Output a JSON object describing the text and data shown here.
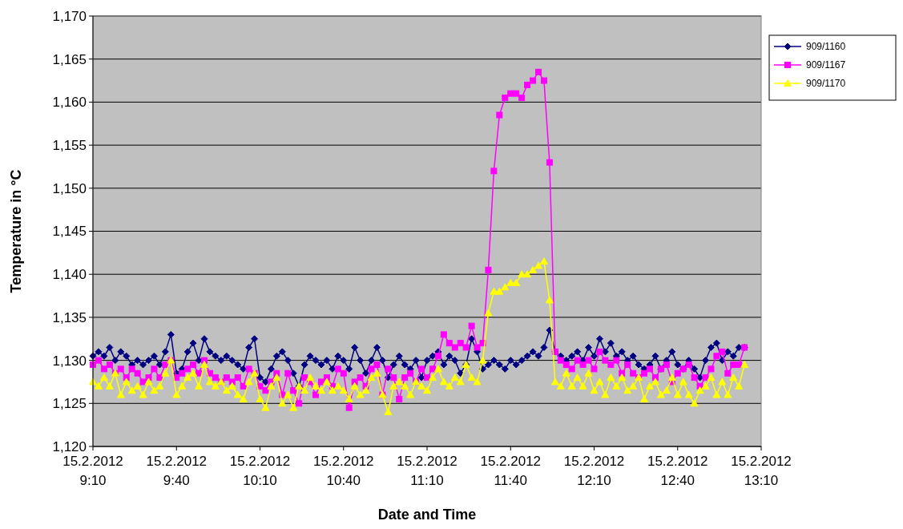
{
  "chart_data": {
    "type": "line",
    "xlabel": "Date and Time",
    "ylabel": "Temperature in °C",
    "x": [
      "2012-02-15T09:10",
      "2012-02-15T09:12",
      "2012-02-15T09:14",
      "2012-02-15T09:16",
      "2012-02-15T09:18",
      "2012-02-15T09:20",
      "2012-02-15T09:22",
      "2012-02-15T09:24",
      "2012-02-15T09:26",
      "2012-02-15T09:28",
      "2012-02-15T09:30",
      "2012-02-15T09:32",
      "2012-02-15T09:34",
      "2012-02-15T09:36",
      "2012-02-15T09:38",
      "2012-02-15T09:40",
      "2012-02-15T09:42",
      "2012-02-15T09:44",
      "2012-02-15T09:46",
      "2012-02-15T09:48",
      "2012-02-15T09:50",
      "2012-02-15T09:52",
      "2012-02-15T09:54",
      "2012-02-15T09:56",
      "2012-02-15T09:58",
      "2012-02-15T10:00",
      "2012-02-15T10:02",
      "2012-02-15T10:04",
      "2012-02-15T10:06",
      "2012-02-15T10:08",
      "2012-02-15T10:10",
      "2012-02-15T10:12",
      "2012-02-15T10:14",
      "2012-02-15T10:16",
      "2012-02-15T10:18",
      "2012-02-15T10:20",
      "2012-02-15T10:22",
      "2012-02-15T10:24",
      "2012-02-15T10:26",
      "2012-02-15T10:28",
      "2012-02-15T10:30",
      "2012-02-15T10:32",
      "2012-02-15T10:34",
      "2012-02-15T10:36",
      "2012-02-15T10:38",
      "2012-02-15T10:40",
      "2012-02-15T10:42",
      "2012-02-15T10:44",
      "2012-02-15T10:46",
      "2012-02-15T10:48",
      "2012-02-15T10:50",
      "2012-02-15T10:52",
      "2012-02-15T10:54",
      "2012-02-15T10:56",
      "2012-02-15T10:58",
      "2012-02-15T11:00",
      "2012-02-15T11:02",
      "2012-02-15T11:04",
      "2012-02-15T11:06",
      "2012-02-15T11:08",
      "2012-02-15T11:10",
      "2012-02-15T11:12",
      "2012-02-15T11:14",
      "2012-02-15T11:16",
      "2012-02-15T11:18",
      "2012-02-15T11:20",
      "2012-02-15T11:22",
      "2012-02-15T11:24",
      "2012-02-15T11:26",
      "2012-02-15T11:28",
      "2012-02-15T11:30",
      "2012-02-15T11:32",
      "2012-02-15T11:34",
      "2012-02-15T11:36",
      "2012-02-15T11:38",
      "2012-02-15T11:40",
      "2012-02-15T11:42",
      "2012-02-15T11:44",
      "2012-02-15T11:46",
      "2012-02-15T11:48",
      "2012-02-15T11:50",
      "2012-02-15T11:52",
      "2012-02-15T11:54",
      "2012-02-15T11:56",
      "2012-02-15T11:58",
      "2012-02-15T12:00",
      "2012-02-15T12:02",
      "2012-02-15T12:04",
      "2012-02-15T12:06",
      "2012-02-15T12:08",
      "2012-02-15T12:10",
      "2012-02-15T12:12",
      "2012-02-15T12:14",
      "2012-02-15T12:16",
      "2012-02-15T12:18",
      "2012-02-15T12:20",
      "2012-02-15T12:22",
      "2012-02-15T12:24",
      "2012-02-15T12:26",
      "2012-02-15T12:28",
      "2012-02-15T12:30",
      "2012-02-15T12:32",
      "2012-02-15T12:34",
      "2012-02-15T12:36",
      "2012-02-15T12:38",
      "2012-02-15T12:40",
      "2012-02-15T12:42",
      "2012-02-15T12:44",
      "2012-02-15T12:46",
      "2012-02-15T12:48",
      "2012-02-15T12:50",
      "2012-02-15T12:52",
      "2012-02-15T12:54",
      "2012-02-15T12:56",
      "2012-02-15T12:58",
      "2012-02-15T13:00",
      "2012-02-15T13:02",
      "2012-02-15T13:04"
    ],
    "series": [
      {
        "name": "909/1160",
        "color": "#000080",
        "marker": "diamond",
        "values": [
          1130.5,
          1131,
          1130.5,
          1131.5,
          1130,
          1131,
          1130.5,
          1129.5,
          1130,
          1129.5,
          1130,
          1130.5,
          1129.5,
          1131,
          1133,
          1128.5,
          1129,
          1131,
          1132,
          1130,
          1132.5,
          1131,
          1130.5,
          1130,
          1130.5,
          1130,
          1129.5,
          1129,
          1131.5,
          1132.5,
          1128,
          1127.5,
          1129,
          1130.5,
          1131,
          1130,
          1128.5,
          1127,
          1129.5,
          1130.5,
          1130,
          1129.5,
          1130,
          1129,
          1130.5,
          1130,
          1129,
          1131.5,
          1130,
          1128.5,
          1130,
          1131.5,
          1130,
          1128,
          1129.5,
          1130.5,
          1129.5,
          1129,
          1130,
          1128,
          1130,
          1130.5,
          1131,
          1129.5,
          1130.5,
          1130,
          1128.5,
          1129.5,
          1132.5,
          1131,
          1129,
          1129.5,
          1130,
          1129.5,
          1129,
          1130,
          1129.5,
          1130,
          1130.5,
          1131,
          1130.5,
          1131.5,
          1133.5,
          1131,
          1130.5,
          1130,
          1130.5,
          1131,
          1130,
          1131.5,
          1130.5,
          1132.5,
          1131,
          1132,
          1130.5,
          1131,
          1130,
          1130.5,
          1129.5,
          1129,
          1129.5,
          1130.5,
          1129,
          1130,
          1131,
          1129.5,
          1129,
          1130,
          1129,
          1128,
          1130,
          1131.5,
          1132,
          1130,
          1131,
          1130.5,
          1131.5,
          1131.5
        ]
      },
      {
        "name": "909/1167",
        "color": "#ff00ff",
        "marker": "square",
        "values": [
          1129.5,
          1130,
          1129,
          1129.5,
          1128.5,
          1129,
          1128,
          1129,
          1128.5,
          1127.5,
          1128,
          1129,
          1128,
          1129.5,
          1130,
          1128,
          1128.5,
          1129,
          1129.5,
          1128.5,
          1130,
          1128.5,
          1128,
          1127.5,
          1128,
          1127.5,
          1128,
          1127,
          1129,
          1128.5,
          1127,
          1126.5,
          1127.5,
          1128.5,
          1126,
          1128.5,
          1126.5,
          1125,
          1128,
          1127.5,
          1126,
          1127.5,
          1128,
          1127,
          1129,
          1128.5,
          1124.5,
          1127.5,
          1128,
          1127,
          1129,
          1129.5,
          1126,
          1129,
          1128,
          1125.5,
          1128,
          1128.5,
          1127.5,
          1129,
          1128,
          1129,
          1130.5,
          1133,
          1132,
          1131.5,
          1132,
          1131.5,
          1134,
          1131.5,
          1132,
          1140.5,
          1152,
          1158.5,
          1160.5,
          1161,
          1161,
          1160.5,
          1162,
          1162.5,
          1163.5,
          1162.5,
          1153,
          1131,
          1130,
          1129.5,
          1129,
          1130,
          1129.5,
          1130,
          1129,
          1131,
          1130,
          1129.5,
          1130,
          1128.5,
          1129.5,
          1128.5,
          1128,
          1128.5,
          1129,
          1128,
          1129,
          1129.5,
          1127.5,
          1128.5,
          1129,
          1129.5,
          1128,
          1127,
          1128,
          1129,
          1130.5,
          1131,
          1128.5,
          1129.5,
          1129.5,
          1131.5
        ]
      },
      {
        "name": "909/1170",
        "color": "#ffff00",
        "marker": "triangle",
        "values": [
          1127.5,
          1127,
          1128,
          1127,
          1128.5,
          1126,
          1127.5,
          1126.5,
          1127,
          1126,
          1127.5,
          1126.5,
          1127,
          1128.5,
          1130,
          1126,
          1127,
          1128,
          1128.5,
          1127,
          1129.5,
          1127.5,
          1127,
          1127.5,
          1126.5,
          1127,
          1126,
          1125.5,
          1127.5,
          1128.5,
          1125.5,
          1124.5,
          1127,
          1128,
          1125,
          1126,
          1124.5,
          1127,
          1126.5,
          1128,
          1127,
          1126.5,
          1127.5,
          1126.5,
          1127,
          1126.5,
          1125.5,
          1127,
          1126,
          1126.5,
          1128,
          1128.5,
          1126,
          1124,
          1127,
          1127.5,
          1127,
          1126,
          1127.5,
          1127,
          1126.5,
          1128,
          1129,
          1127.5,
          1127,
          1128,
          1127.5,
          1129.5,
          1128,
          1127.5,
          1130,
          1135.5,
          1138,
          1138,
          1138.5,
          1139,
          1139,
          1140,
          1140,
          1140.5,
          1141,
          1141.5,
          1137,
          1127.5,
          1127,
          1128.5,
          1127,
          1128,
          1127,
          1128.5,
          1126.5,
          1127.5,
          1126,
          1128,
          1127,
          1128,
          1126.5,
          1127,
          1128,
          1125.5,
          1127,
          1127.5,
          1126,
          1126.5,
          1128,
          1126,
          1127.5,
          1126,
          1125,
          1126.5,
          1127,
          1128,
          1126,
          1127.5,
          1126,
          1128,
          1127,
          1129.5
        ]
      }
    ],
    "xlim": [
      "2012-02-15T09:10",
      "2012-02-15T13:10"
    ],
    "xticks": [
      {
        "value": "2012-02-15T09:10",
        "label": "15.2.2012 9:10"
      },
      {
        "value": "2012-02-15T09:40",
        "label": "15.2.2012 9:40"
      },
      {
        "value": "2012-02-15T10:10",
        "label": "15.2.2012 10:10"
      },
      {
        "value": "2012-02-15T10:40",
        "label": "15.2.2012 10:40"
      },
      {
        "value": "2012-02-15T11:10",
        "label": "15.2.2012 11:10"
      },
      {
        "value": "2012-02-15T11:40",
        "label": "15.2.2012 11:40"
      },
      {
        "value": "2012-02-15T12:10",
        "label": "15.2.2012 12:10"
      },
      {
        "value": "2012-02-15T12:40",
        "label": "15.2.2012 12:40"
      },
      {
        "value": "2012-02-15T13:10",
        "label": "15.2.2012 13:10"
      }
    ],
    "ylim": [
      1120,
      1170
    ],
    "yticks": [
      {
        "value": 1120,
        "label": "1,120"
      },
      {
        "value": 1125,
        "label": "1,125"
      },
      {
        "value": 1130,
        "label": "1,130"
      },
      {
        "value": 1135,
        "label": "1,135"
      },
      {
        "value": 1140,
        "label": "1,140"
      },
      {
        "value": 1145,
        "label": "1,145"
      },
      {
        "value": 1150,
        "label": "1,150"
      },
      {
        "value": 1155,
        "label": "1,155"
      },
      {
        "value": 1160,
        "label": "1,160"
      },
      {
        "value": 1165,
        "label": "1,165"
      },
      {
        "value": 1170,
        "label": "1,170"
      }
    ],
    "grid": "y",
    "legend": "right",
    "line_style": "solid"
  }
}
